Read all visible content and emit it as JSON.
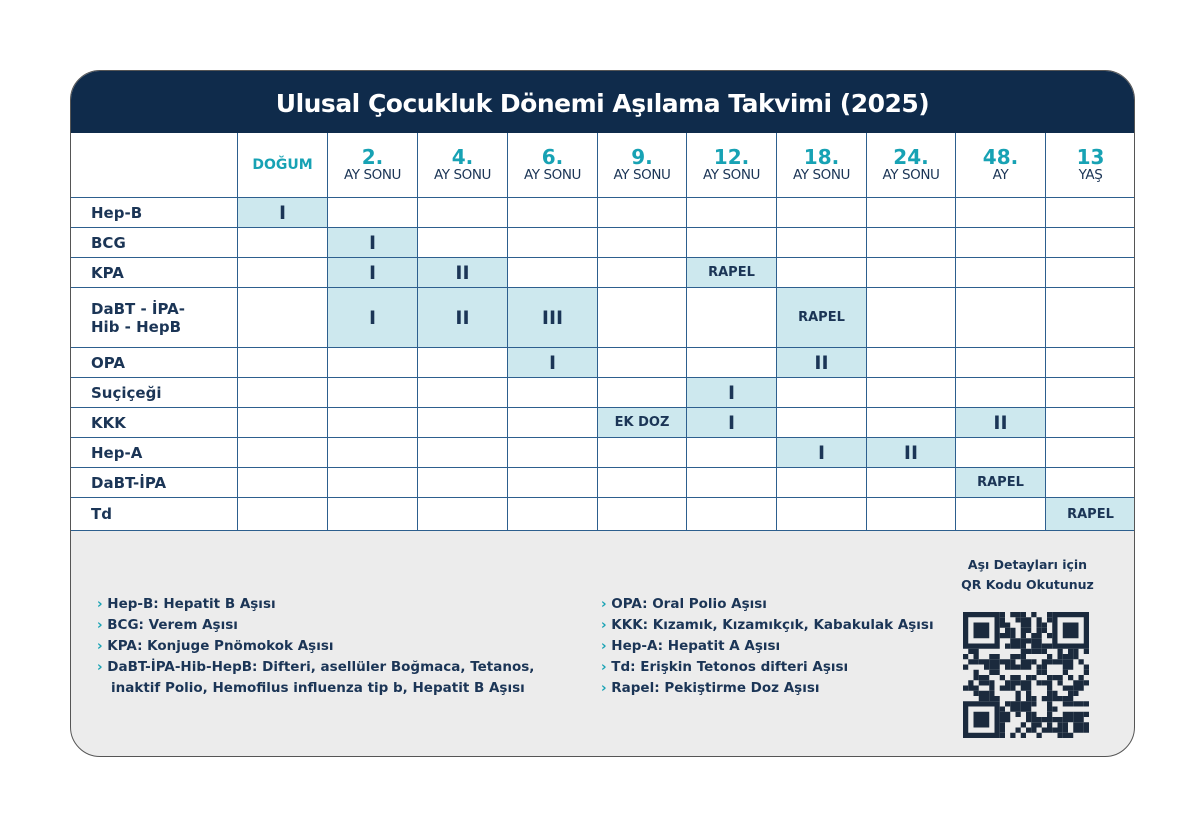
{
  "header": {
    "title": "Ulusal Çocukluk Dönemi Aşılama Takvimi (2025)"
  },
  "table": {
    "columns": [
      {
        "top": "DOĞUM"
      },
      {
        "top": "2.",
        "bottom": "AY SONU"
      },
      {
        "top": "4.",
        "bottom": "AY SONU"
      },
      {
        "top": "6.",
        "bottom": "AY SONU"
      },
      {
        "top": "9.",
        "bottom": "AY SONU"
      },
      {
        "top": "12.",
        "bottom": "AY SONU"
      },
      {
        "top": "18.",
        "bottom": "AY SONU"
      },
      {
        "top": "24.",
        "bottom": "AY SONU"
      },
      {
        "top": "48.",
        "bottom": "AY"
      },
      {
        "top": "13",
        "bottom": "YAŞ"
      }
    ],
    "rows": [
      {
        "name": [
          "Hep-B"
        ],
        "cells": [
          "I",
          null,
          null,
          null,
          null,
          null,
          null,
          null,
          null,
          null
        ]
      },
      {
        "name": [
          "BCG"
        ],
        "cells": [
          null,
          "I",
          null,
          null,
          null,
          null,
          null,
          null,
          null,
          null
        ]
      },
      {
        "name": [
          "KPA"
        ],
        "cells": [
          null,
          "I",
          "II",
          null,
          null,
          "RAPEL",
          null,
          null,
          null,
          null
        ]
      },
      {
        "name": [
          "DaBT - İPA-",
          "Hib - HepB"
        ],
        "cells": [
          null,
          "I",
          "II",
          "III",
          null,
          null,
          "RAPEL",
          null,
          null,
          null
        ]
      },
      {
        "name": [
          "OPA"
        ],
        "cells": [
          null,
          null,
          null,
          "I",
          null,
          null,
          "II",
          null,
          null,
          null
        ]
      },
      {
        "name": [
          "Suçiçeği"
        ],
        "cells": [
          null,
          null,
          null,
          null,
          null,
          "I",
          null,
          null,
          null,
          null
        ]
      },
      {
        "name": [
          "KKK"
        ],
        "cells": [
          null,
          null,
          null,
          null,
          "EK DOZ",
          "I",
          null,
          null,
          "II",
          null
        ]
      },
      {
        "name": [
          "Hep-A"
        ],
        "cells": [
          null,
          null,
          null,
          null,
          null,
          null,
          "I",
          "II",
          null,
          null
        ]
      },
      {
        "name": [
          "DaBT-İPA"
        ],
        "cells": [
          null,
          null,
          null,
          null,
          null,
          null,
          null,
          null,
          "RAPEL",
          null
        ]
      },
      {
        "name": [
          "Td"
        ],
        "cells": [
          null,
          null,
          null,
          null,
          null,
          null,
          null,
          null,
          null,
          "RAPEL"
        ]
      }
    ]
  },
  "legend": {
    "left": [
      "Hep-B: Hepatit B Aşısı",
      "BCG: Verem Aşısı",
      "KPA: Konjuge Pnömokok Aşısı",
      "DaBT-İPA-Hib-HepB: Difteri, asellüler Boğmaca, Tetanos, inaktif Polio, Hemofilus influenza tip b, Hepatit B Aşısı"
    ],
    "right": [
      "OPA: Oral Polio Aşısı",
      "KKK: Kızamık, Kızamıkçık, Kabakulak Aşısı",
      "Hep-A: Hepatit A Aşısı",
      "Td: Erişkin Tetonos difteri Aşısı",
      "Rapel: Pekiştirme Doz Aşısı"
    ]
  },
  "qr": {
    "caption": [
      "Aşı Detayları için",
      "QR Kodu Okutunuz"
    ]
  }
}
